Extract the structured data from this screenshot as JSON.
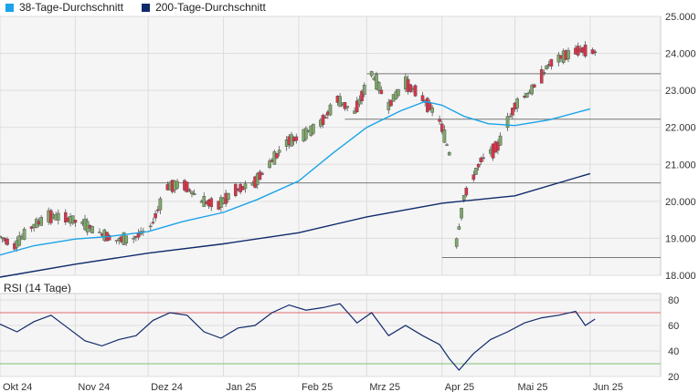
{
  "legend": [
    {
      "label": "38-Tage-Durchschnitt",
      "color": "#1aa3e8"
    },
    {
      "label": "200-Tage-Durchschnitt",
      "color": "#0f2a6b"
    }
  ],
  "rsi_title": "RSI (14 Tage)",
  "colors": {
    "up": "#7fa86a",
    "down": "#d9354b",
    "ma38": "#1aa3e8",
    "ma200": "#0f2a6b",
    "rsi": "#0f2a6b",
    "rsi_upper": "#e07070",
    "rsi_lower": "#7fbf6f",
    "grid": "#dddddd",
    "panel": "#f5f5f5"
  },
  "chart_data": [
    {
      "type": "candlestick",
      "title": "",
      "ylim": [
        18.0,
        25.0
      ],
      "yticks": [
        "18.000",
        "19.000",
        "20.000",
        "21.000",
        "22.000",
        "23.000",
        "24.000",
        "25.000"
      ],
      "xlim": [
        "2024-10-01",
        "2025-06-30"
      ],
      "xticks": [
        {
          "date": "2024-10-01",
          "label": "Okt 24"
        },
        {
          "date": "2024-11-01",
          "label": "Nov 24"
        },
        {
          "date": "2024-12-01",
          "label": "Dez 24"
        },
        {
          "date": "2025-01-01",
          "label": "Jan 25"
        },
        {
          "date": "2025-02-01",
          "label": "Feb 25"
        },
        {
          "date": "2025-03-01",
          "label": "Mrz 25"
        },
        {
          "date": "2025-04-01",
          "label": "Apr 25"
        },
        {
          "date": "2025-05-01",
          "label": "Mai 25"
        },
        {
          "date": "2025-06-01",
          "label": "Jun 25"
        }
      ],
      "horizontal_levels": [
        {
          "value": 23.45,
          "from": "2025-03-01",
          "to": "2025-06-30"
        },
        {
          "value": 22.22,
          "from": "2025-02-20",
          "to": "2025-06-30"
        },
        {
          "value": 20.5,
          "from": "2024-10-01",
          "to": "2025-06-30"
        },
        {
          "value": 18.48,
          "from": "2025-04-01",
          "to": "2025-06-30"
        }
      ],
      "price_path": [
        [
          "2024-10-01",
          19.05
        ],
        [
          "2024-10-07",
          18.8
        ],
        [
          "2024-10-14",
          19.3
        ],
        [
          "2024-10-21",
          19.6
        ],
        [
          "2024-10-28",
          19.55
        ],
        [
          "2024-11-04",
          19.4
        ],
        [
          "2024-11-11",
          19.15
        ],
        [
          "2024-11-18",
          18.95
        ],
        [
          "2024-11-25",
          19.0
        ],
        [
          "2024-12-02",
          19.3
        ],
        [
          "2024-12-09",
          20.4
        ],
        [
          "2024-12-16",
          20.45
        ],
        [
          "2024-12-23",
          20.0
        ],
        [
          "2024-12-30",
          19.9
        ],
        [
          "2025-01-06",
          20.3
        ],
        [
          "2025-01-13",
          20.45
        ],
        [
          "2025-01-20",
          21.0
        ],
        [
          "2025-01-27",
          21.6
        ],
        [
          "2025-02-03",
          21.8
        ],
        [
          "2025-02-10",
          22.1
        ],
        [
          "2025-02-17",
          22.75
        ],
        [
          "2025-02-24",
          22.4
        ],
        [
          "2025-03-03",
          23.45
        ],
        [
          "2025-03-10",
          22.6
        ],
        [
          "2025-03-17",
          23.2
        ],
        [
          "2025-03-24",
          22.8
        ],
        [
          "2025-03-31",
          22.2
        ],
        [
          "2025-04-04",
          21.3
        ],
        [
          "2025-04-07",
          18.9
        ],
        [
          "2025-04-10",
          20.1
        ],
        [
          "2025-04-17",
          21.1
        ],
        [
          "2025-04-24",
          21.5
        ],
        [
          "2025-05-01",
          22.6
        ],
        [
          "2025-05-08",
          23.0
        ],
        [
          "2025-05-15",
          23.7
        ],
        [
          "2025-05-22",
          23.95
        ],
        [
          "2025-05-28",
          24.1
        ],
        [
          "2025-06-03",
          24.05
        ]
      ],
      "series": [
        {
          "name": "38-Tage-Durchschnitt",
          "points": [
            [
              "2024-10-01",
              18.55
            ],
            [
              "2024-10-15",
              18.8
            ],
            [
              "2024-11-01",
              18.98
            ],
            [
              "2024-11-15",
              19.05
            ],
            [
              "2024-12-01",
              19.18
            ],
            [
              "2024-12-15",
              19.45
            ],
            [
              "2025-01-01",
              19.7
            ],
            [
              "2025-01-15",
              20.05
            ],
            [
              "2025-02-01",
              20.55
            ],
            [
              "2025-02-15",
              21.3
            ],
            [
              "2025-03-01",
              22.0
            ],
            [
              "2025-03-15",
              22.45
            ],
            [
              "2025-03-25",
              22.7
            ],
            [
              "2025-04-01",
              22.6
            ],
            [
              "2025-04-10",
              22.3
            ],
            [
              "2025-04-20",
              22.1
            ],
            [
              "2025-05-01",
              22.05
            ],
            [
              "2025-05-15",
              22.2
            ],
            [
              "2025-06-01",
              22.5
            ]
          ]
        },
        {
          "name": "200-Tage-Durchschnitt",
          "points": [
            [
              "2024-10-01",
              17.95
            ],
            [
              "2024-11-01",
              18.3
            ],
            [
              "2024-12-01",
              18.6
            ],
            [
              "2025-01-01",
              18.85
            ],
            [
              "2025-02-01",
              19.15
            ],
            [
              "2025-03-01",
              19.58
            ],
            [
              "2025-04-01",
              19.95
            ],
            [
              "2025-05-01",
              20.15
            ],
            [
              "2025-06-01",
              20.75
            ]
          ]
        }
      ]
    },
    {
      "type": "line",
      "title": "RSI (14 Tage)",
      "ylim": [
        20,
        85
      ],
      "yticks": [
        "20",
        "40",
        "60",
        "80"
      ],
      "reference_lines": [
        70,
        30
      ],
      "xlim": [
        "2024-10-01",
        "2025-06-30"
      ],
      "series": [
        {
          "name": "RSI (14 Tage)",
          "points": [
            [
              "2024-10-01",
              61
            ],
            [
              "2024-10-08",
              55
            ],
            [
              "2024-10-15",
              63
            ],
            [
              "2024-10-22",
              68
            ],
            [
              "2024-10-29",
              58
            ],
            [
              "2024-11-05",
              48
            ],
            [
              "2024-11-12",
              44
            ],
            [
              "2024-11-19",
              49
            ],
            [
              "2024-11-26",
              52
            ],
            [
              "2024-12-03",
              64
            ],
            [
              "2024-12-10",
              70
            ],
            [
              "2024-12-17",
              68
            ],
            [
              "2024-12-24",
              55
            ],
            [
              "2024-12-31",
              50
            ],
            [
              "2025-01-07",
              58
            ],
            [
              "2025-01-14",
              60
            ],
            [
              "2025-01-21",
              70
            ],
            [
              "2025-01-28",
              76
            ],
            [
              "2025-02-04",
              72
            ],
            [
              "2025-02-11",
              74
            ],
            [
              "2025-02-18",
              77
            ],
            [
              "2025-02-25",
              62
            ],
            [
              "2025-03-03",
              70
            ],
            [
              "2025-03-10",
              52
            ],
            [
              "2025-03-17",
              60
            ],
            [
              "2025-03-24",
              52
            ],
            [
              "2025-03-31",
              45
            ],
            [
              "2025-04-04",
              34
            ],
            [
              "2025-04-08",
              25
            ],
            [
              "2025-04-14",
              38
            ],
            [
              "2025-04-21",
              49
            ],
            [
              "2025-04-28",
              55
            ],
            [
              "2025-05-05",
              62
            ],
            [
              "2025-05-12",
              66
            ],
            [
              "2025-05-19",
              68
            ],
            [
              "2025-05-26",
              71
            ],
            [
              "2025-05-30",
              60
            ],
            [
              "2025-06-03",
              65
            ]
          ]
        }
      ]
    }
  ]
}
